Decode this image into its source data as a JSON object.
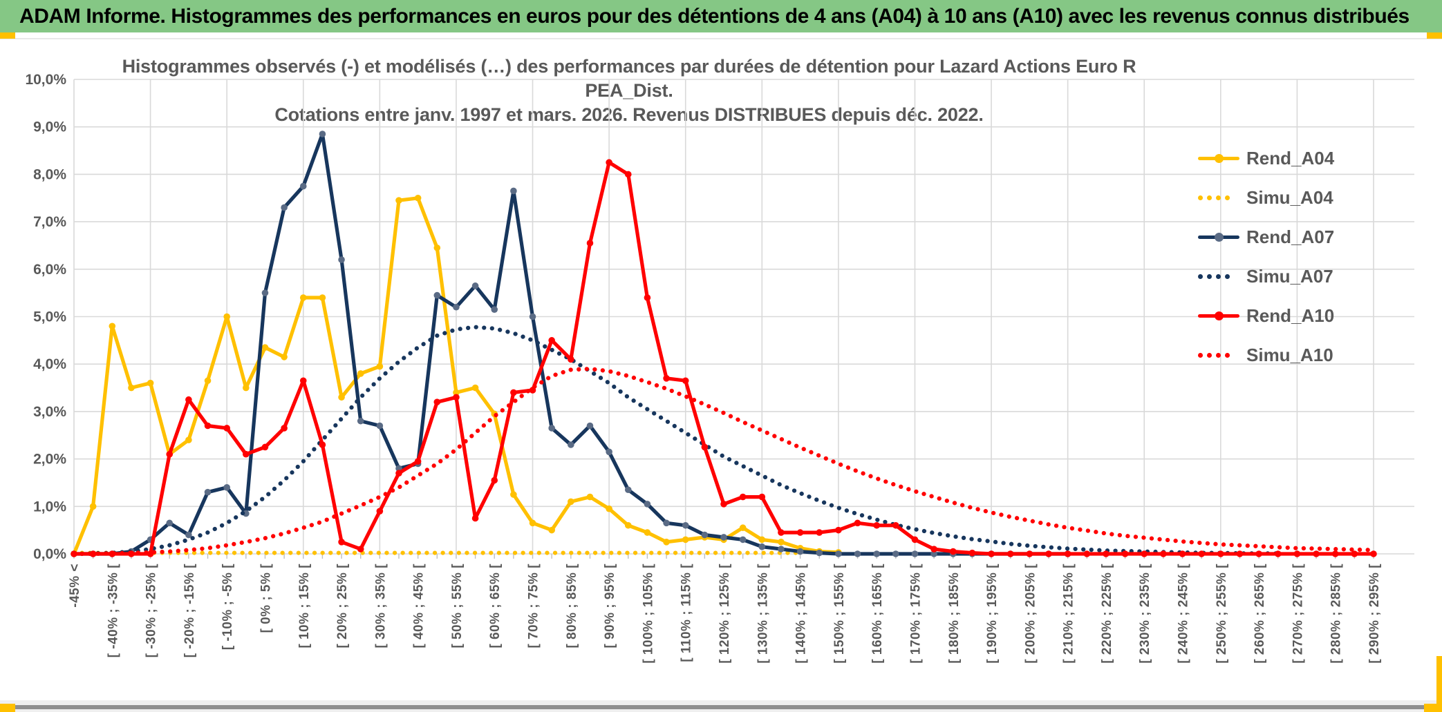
{
  "banner": {
    "title": "ADAM Informe. Histogrammes des performances en euros pour des détentions de 4 ans (A04) à 10 ans (A10) avec les revenus connus distribués",
    "background_color": "#85C785"
  },
  "chart_data": {
    "type": "line",
    "title_line1": "Histogrammes observés (-) et modélisés (…) des performances par durées de détention pour Lazard Actions Euro R PEA_Dist.",
    "title_line2": "Cotations entre janv. 1997 et mars. 2026. Revenus DISTRIBUES depuis déc. 2022.",
    "ylim": [
      0,
      10
    ],
    "grid": true,
    "legend_position": "right-inside",
    "y_tick_labels": [
      "0,0%",
      "1,0%",
      "2,0%",
      "3,0%",
      "4,0%",
      "5,0%",
      "6,0%",
      "7,0%",
      "8,0%",
      "9,0%",
      "10,0%"
    ],
    "x_labels": [
      "-45% <",
      "[ -40% ; -35% [",
      "[ -30% ; -25% [",
      "[ -20% ; -15% [",
      "[ -10% ; -5% [",
      "[ 0% ; 5% [",
      "[ 10% ; 15% [",
      "[ 20% ; 25% [",
      "[ 30% ; 35% [",
      "[ 40% ; 45% [",
      "[ 50% ; 55% [",
      "[ 60% ; 65% [",
      "[ 70% ; 75% [",
      "[ 80% ; 85% [",
      "[ 90% ; 95% [",
      "[ 100% ; 105% [",
      "[ 110% ; 115% [",
      "[ 120% ; 125% [",
      "[ 130% ; 135% [",
      "[ 140% ; 145% [",
      "[ 150% ; 155% [",
      "[ 160% ; 165% [",
      "[ 170% ; 175% [",
      "[ 180% ; 185% [",
      "[ 190% ; 195% [",
      "[ 200% ; 205% [",
      "[ 210% ; 215% [",
      "[ 220% ; 225% [",
      "[ 230% ; 235% [",
      "[ 240% ; 245% [",
      "[ 250% ; 255% [",
      "[ 260% ; 265% [",
      "[ 270% ; 275% [",
      "[ 280% ; 285% [",
      "[ 290% ; 295% ["
    ],
    "x_label_every_n_bins": 2,
    "bins_count": 69,
    "series": [
      {
        "key": "rend_a04",
        "name": "Rend_A04",
        "style": "solid",
        "color": "#FFC000",
        "marker_color": "#FFC000",
        "values": [
          0,
          1.0,
          4.8,
          3.5,
          3.6,
          2.1,
          2.4,
          3.65,
          5.0,
          3.5,
          4.35,
          4.15,
          5.4,
          5.4,
          3.3,
          3.8,
          3.95,
          7.45,
          7.5,
          6.45,
          3.4,
          3.5,
          2.95,
          1.25,
          0.65,
          0.5,
          1.1,
          1.2,
          0.95,
          0.6,
          0.45,
          0.25,
          0.3,
          0.35,
          0.3,
          0.55,
          0.3,
          0.25,
          0.12,
          0.05,
          0.03,
          null,
          null,
          null,
          null,
          null,
          null,
          null,
          null,
          null,
          null,
          null,
          null,
          null,
          null,
          null,
          null,
          null,
          null,
          null,
          null,
          null,
          null,
          null,
          null,
          null,
          null,
          null,
          null
        ]
      },
      {
        "key": "simu_a04",
        "name": "Simu_A04",
        "style": "dotted",
        "color": "#FFC000",
        "values": [
          0.02,
          0.02,
          0.02,
          0.02,
          0.02,
          0.02,
          0.02,
          0.02,
          0.02,
          0.02,
          0.02,
          0.02,
          0.02,
          0.02,
          0.02,
          0.02,
          0.02,
          0.02,
          0.02,
          0.02,
          0.02,
          0.02,
          0.02,
          0.02,
          0.02,
          0.02,
          0.02,
          0.02,
          0.02,
          0.02,
          0.02,
          0.02,
          0.02,
          0.02,
          0.02,
          0.02,
          0.02,
          0.02,
          0.02,
          null,
          null,
          null,
          null,
          null,
          null,
          null,
          null,
          null,
          null,
          null,
          null,
          null,
          null,
          null,
          null,
          null,
          null,
          null,
          null,
          null,
          null,
          null,
          null,
          null,
          null,
          null,
          null,
          null,
          null
        ]
      },
      {
        "key": "rend_a07",
        "name": "Rend_A07",
        "style": "solid",
        "color": "#17365D",
        "marker_color": "#5A6B85",
        "values": [
          0,
          0,
          0,
          0.05,
          0.3,
          0.65,
          0.4,
          1.3,
          1.4,
          0.85,
          5.5,
          7.3,
          7.75,
          8.85,
          6.2,
          2.8,
          2.7,
          1.8,
          1.9,
          5.45,
          5.2,
          5.65,
          5.15,
          7.65,
          5.0,
          2.65,
          2.3,
          2.7,
          2.15,
          1.35,
          1.05,
          0.65,
          0.6,
          0.4,
          0.35,
          0.3,
          0.15,
          0.1,
          0.05,
          0.02,
          0,
          0,
          0,
          0,
          0,
          0,
          0,
          0,
          0,
          0,
          0,
          0,
          0,
          null,
          null,
          null,
          null,
          null,
          null,
          null,
          null,
          null,
          null,
          null,
          null,
          null,
          null,
          null,
          null
        ]
      },
      {
        "key": "simu_a07",
        "name": "Simu_A07",
        "style": "dotted",
        "color": "#17365D",
        "values": [
          0,
          0.01,
          0.02,
          0.05,
          0.1,
          0.18,
          0.3,
          0.45,
          0.65,
          0.9,
          1.2,
          1.55,
          1.95,
          2.4,
          2.85,
          3.3,
          3.7,
          4.05,
          4.35,
          4.6,
          4.73,
          4.78,
          4.75,
          4.65,
          4.5,
          4.3,
          4.1,
          3.85,
          3.6,
          3.3,
          3.05,
          2.8,
          2.55,
          2.3,
          2.05,
          1.85,
          1.65,
          1.45,
          1.28,
          1.12,
          0.97,
          0.84,
          0.72,
          0.61,
          0.52,
          0.44,
          0.37,
          0.31,
          0.26,
          0.21,
          0.17,
          0.14,
          0.11,
          0.09,
          0.07,
          0.06,
          0.05,
          0.04,
          0.03,
          0.02,
          0.02,
          0.01,
          0.01,
          0.01,
          null,
          null,
          null,
          null,
          null
        ]
      },
      {
        "key": "rend_a10",
        "name": "Rend_A10",
        "style": "solid",
        "color": "#FF0000",
        "marker_color": "#FF0000",
        "values": [
          0,
          0,
          0,
          0,
          0,
          2.1,
          3.25,
          2.7,
          2.65,
          2.1,
          2.25,
          2.65,
          3.65,
          2.3,
          0.25,
          0.1,
          0.9,
          1.7,
          1.95,
          3.2,
          3.3,
          0.75,
          1.55,
          3.4,
          3.45,
          4.5,
          4.1,
          6.55,
          8.25,
          8.0,
          5.4,
          3.7,
          3.65,
          2.25,
          1.05,
          1.2,
          1.2,
          0.45,
          0.45,
          0.45,
          0.5,
          0.65,
          0.6,
          0.6,
          0.3,
          0.1,
          0.05,
          0.02,
          0,
          0,
          0,
          0,
          0,
          0,
          0,
          0,
          0,
          0,
          0,
          0,
          0,
          0,
          0,
          0,
          0,
          0,
          0,
          0,
          0
        ]
      },
      {
        "key": "simu_a10",
        "name": "Simu_A10",
        "style": "dotted",
        "color": "#FF0000",
        "values": [
          0,
          0,
          0.01,
          0.02,
          0.03,
          0.05,
          0.08,
          0.12,
          0.18,
          0.25,
          0.33,
          0.43,
          0.55,
          0.68,
          0.85,
          1.02,
          1.2,
          1.4,
          1.65,
          1.9,
          2.2,
          2.55,
          2.9,
          3.2,
          3.5,
          3.75,
          3.88,
          3.9,
          3.85,
          3.75,
          3.62,
          3.48,
          3.32,
          3.15,
          2.97,
          2.78,
          2.6,
          2.42,
          2.24,
          2.07,
          1.9,
          1.74,
          1.59,
          1.45,
          1.32,
          1.2,
          1.08,
          0.97,
          0.87,
          0.78,
          0.7,
          0.62,
          0.55,
          0.49,
          0.43,
          0.38,
          0.34,
          0.3,
          0.26,
          0.23,
          0.2,
          0.18,
          0.16,
          0.14,
          0.12,
          0.11,
          0.1,
          0.09,
          0.08
        ]
      }
    ],
    "colors": {
      "grid": "#D9D9D9",
      "axis_text": "#595959",
      "tick": "#BFBFBF"
    }
  },
  "legend": {
    "items": [
      {
        "label": "Rend_A04",
        "style": "solid",
        "color": "#FFC000",
        "marker_color": "#FFC000"
      },
      {
        "label": "Simu_A04",
        "style": "dotted",
        "color": "#FFC000"
      },
      {
        "label": "Rend_A07",
        "style": "solid",
        "color": "#17365D",
        "marker_color": "#5A6B85"
      },
      {
        "label": "Simu_A07",
        "style": "dotted",
        "color": "#17365D"
      },
      {
        "label": "Rend_A10",
        "style": "solid",
        "color": "#FF0000",
        "marker_color": "#FF0000"
      },
      {
        "label": "Simu_A10",
        "style": "dotted",
        "color": "#FF0000"
      }
    ]
  }
}
